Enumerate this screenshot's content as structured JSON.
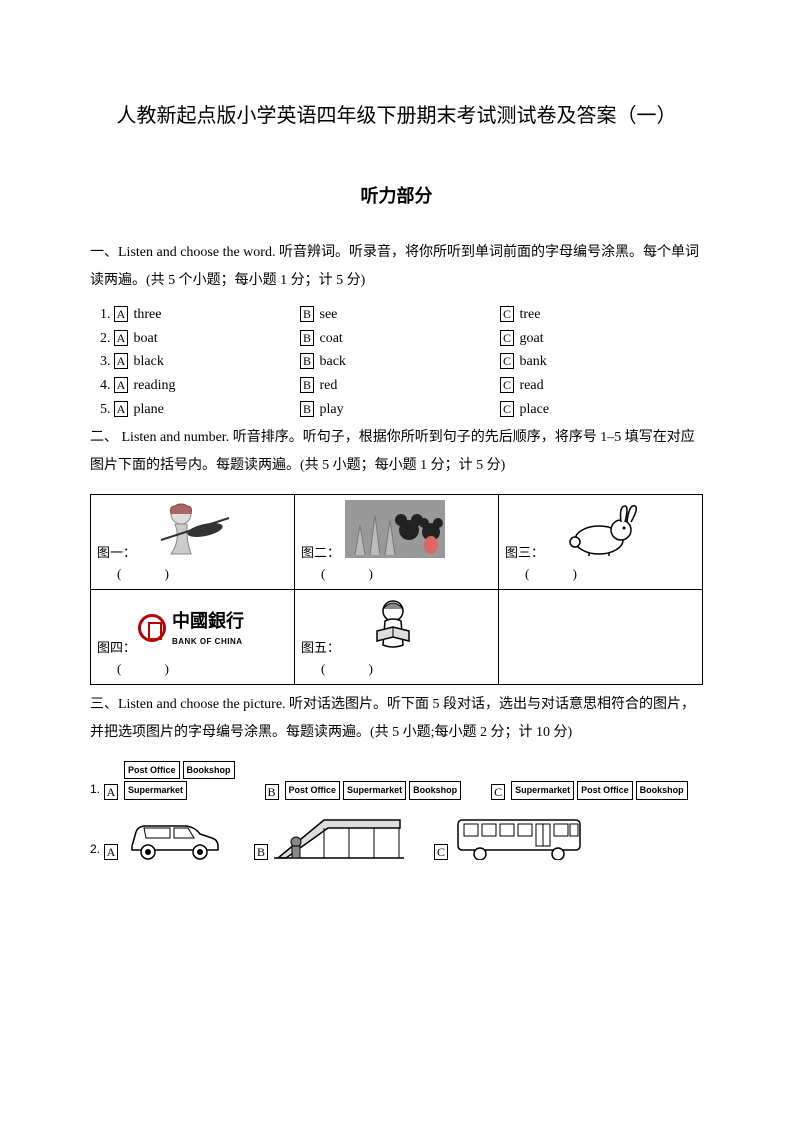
{
  "title": "人教新起点版小学英语四年级下册期末考试测试卷及答案（一）",
  "subtitle": "听力部分",
  "section1": {
    "intro": "一、Listen and choose the word. 听音辨词。听录音，将你所听到单词前面的字母编号涂黑。每个单词读两遍。(共 5 个小题；每小题 1 分；计 5 分)",
    "rows": [
      {
        "n": "1.",
        "a": "three",
        "b": "see",
        "c": "tree"
      },
      {
        "n": "2.",
        "a": "boat",
        "b": "coat",
        "c": "goat"
      },
      {
        "n": "3.",
        "a": "black",
        "b": "back",
        "c": "bank"
      },
      {
        "n": "4.",
        "a": "reading",
        "b": "red",
        "c": "read"
      },
      {
        "n": "5.",
        "a": "plane",
        "b": "play",
        "c": "place"
      }
    ],
    "letters": {
      "a": "A",
      "b": "B",
      "c": "C"
    }
  },
  "section2": {
    "intro": "二、 Listen and number. 听音排序。听句子，根据你所听到句子的先后顺序，将序号 1–5 填写在对应图片下面的括号内。每题读两遍。(共 5 小题；每小题 1 分；计 5 分)",
    "cells": [
      {
        "label": "图一："
      },
      {
        "label": "图二："
      },
      {
        "label": "图三："
      },
      {
        "label": "图四：",
        "bank_cn": "中國銀行",
        "bank_en": "BANK OF CHINA"
      },
      {
        "label": "图五："
      }
    ],
    "paren": "(         )"
  },
  "section3": {
    "intro": "三、Listen and choose the picture.   听对话选图片。听下面 5 段对话，选出与对话意思相符合的图片，并把选项图片的字母编号涂黑。每题读两遍。(共 5 小题;每小题 2 分；计 10 分)",
    "row1": {
      "n": "1.",
      "a": [
        [
          "Post Office",
          "Bookshop"
        ],
        [
          "Supermarket"
        ]
      ],
      "b": [
        [
          "Post Office",
          "Supermarket",
          "Bookshop"
        ]
      ],
      "c": [
        [
          "Supermarket",
          "Post Office",
          "Bookshop"
        ]
      ]
    },
    "row2": {
      "n": "2."
    },
    "letters": {
      "a": "A",
      "b": "B",
      "c": "C"
    }
  }
}
